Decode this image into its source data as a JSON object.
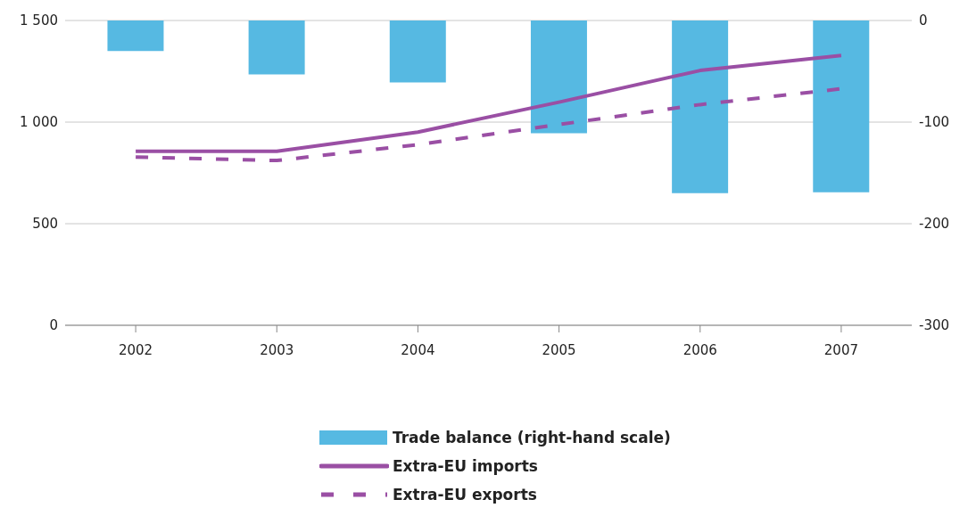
{
  "chart_data": {
    "type": "bar",
    "categories": [
      "2002",
      "2003",
      "2004",
      "2005",
      "2006",
      "2007"
    ],
    "series": [
      {
        "name": "Trade balance (right-hand scale)",
        "axis": "y2",
        "color": "#56b9e2",
        "values": [
          -30,
          -53,
          -61,
          -111,
          -170,
          -169
        ]
      },
      {
        "name": "Extra-EU imports",
        "type": "line",
        "color": "#9a4fa4",
        "line_style": "solid",
        "values": [
          856,
          856,
          951,
          1098,
          1254,
          1328
        ]
      },
      {
        "name": "Extra-EU exports",
        "type": "line",
        "color": "#9a4fa4",
        "line_style": "dashed",
        "values": [
          828,
          811,
          889,
          988,
          1086,
          1164
        ]
      }
    ],
    "ylim": [
      0,
      1500
    ],
    "yticks": [
      0,
      {
        "value": 500,
        "label": "500"
      },
      {
        "value": 1000,
        "label": "1 000"
      },
      {
        "value": 1500,
        "label": "1 500"
      }
    ],
    "y2lim": [
      -300,
      0
    ],
    "y2ticks": [
      -300,
      -200,
      -100,
      0
    ],
    "grid": "y",
    "legend": "bottom",
    "marker": "none"
  }
}
